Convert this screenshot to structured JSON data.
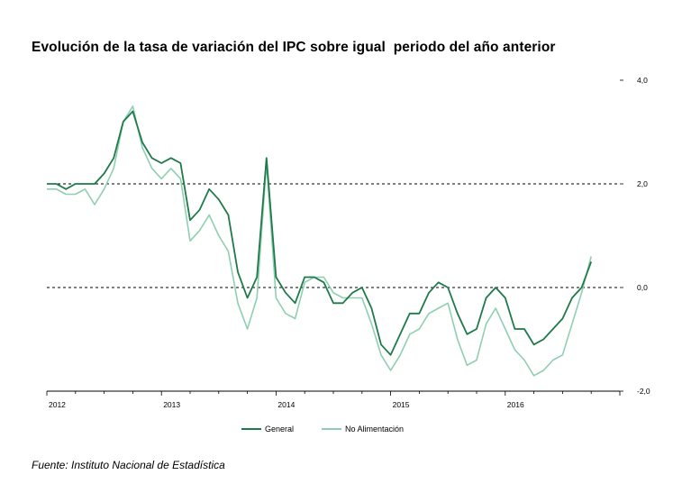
{
  "title": "Evolución de la tasa de variación del IPC sobre igual  periodo del año anterior",
  "source": "Fuente: Instituto Nacional de Estadística",
  "chart_data": {
    "type": "line",
    "title": "Evolución de la tasa de variación del IPC sobre igual  periodo del año anterior",
    "xlabel": "",
    "ylabel": "",
    "x_start": "2012-01",
    "x_end": "2016-10",
    "x_tick_labels": [
      "2012",
      "2013",
      "2014",
      "2015",
      "2016"
    ],
    "y_tick_labels": [
      "4,0",
      "2,0",
      "0,0",
      "-2,0"
    ],
    "y_ticks": [
      4,
      2,
      0,
      -2
    ],
    "ylim": [
      -2,
      4
    ],
    "y_axis_side": "right",
    "reference_lines": [
      2,
      0
    ],
    "grid": false,
    "legend_position": "bottom-center",
    "series": [
      {
        "name": "General",
        "color": "#1f7a4a",
        "values": [
          2.0,
          2.0,
          1.9,
          2.0,
          2.0,
          2.0,
          2.2,
          2.5,
          3.2,
          3.4,
          2.8,
          2.5,
          2.4,
          2.5,
          2.4,
          1.3,
          1.5,
          1.9,
          1.7,
          1.4,
          0.3,
          -0.2,
          0.2,
          2.5,
          0.2,
          -0.1,
          -0.3,
          0.2,
          0.2,
          0.1,
          -0.3,
          -0.3,
          -0.1,
          0.0,
          -0.4,
          -1.1,
          -1.3,
          -0.9,
          -0.5,
          -0.5,
          -0.1,
          0.1,
          0.0,
          -0.5,
          -0.9,
          -0.8,
          -0.2,
          0.0,
          -0.2,
          -0.8,
          -0.8,
          -1.1,
          -1.0,
          -0.8,
          -0.6,
          -0.2,
          0.0,
          0.5
        ]
      },
      {
        "name": "No Alimentación",
        "color": "#8fcfb1",
        "values": [
          1.9,
          1.9,
          1.8,
          1.8,
          1.9,
          1.6,
          1.9,
          2.3,
          3.2,
          3.5,
          2.7,
          2.3,
          2.1,
          2.3,
          2.1,
          0.9,
          1.1,
          1.4,
          1.0,
          0.7,
          -0.3,
          -0.8,
          -0.2,
          2.4,
          -0.2,
          -0.5,
          -0.6,
          0.1,
          0.2,
          0.2,
          -0.1,
          -0.2,
          -0.2,
          -0.2,
          -0.7,
          -1.3,
          -1.6,
          -1.3,
          -0.9,
          -0.8,
          -0.5,
          -0.4,
          -0.3,
          -1.0,
          -1.5,
          -1.4,
          -0.7,
          -0.4,
          -0.8,
          -1.2,
          -1.4,
          -1.7,
          -1.6,
          -1.4,
          -1.3,
          -0.7,
          -0.1,
          0.6
        ]
      }
    ]
  },
  "colors": {
    "axis": "#000000",
    "reference_line": "#000000",
    "general": "#1f7a4a",
    "no_alimentacion": "#8fcfb1"
  }
}
